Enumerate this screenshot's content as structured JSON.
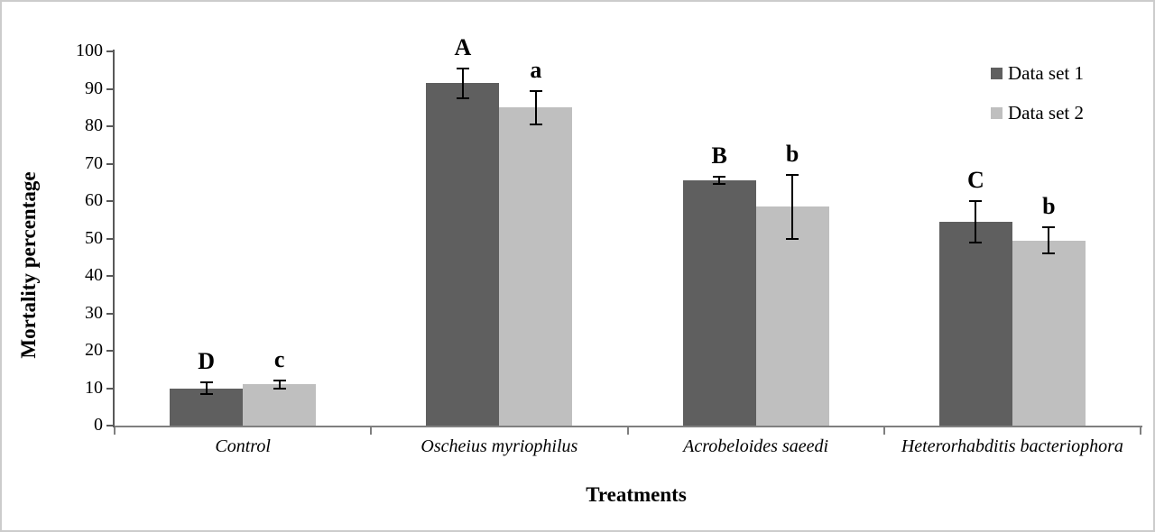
{
  "chart_data": {
    "type": "bar",
    "title": "",
    "xlabel": "Treatments",
    "ylabel": "Mortality percentage",
    "ylim": [
      0,
      100
    ],
    "ytick_step": 10,
    "grid": false,
    "legend_position": "top-right",
    "categories": [
      "Control",
      "Oscheius myriophilus",
      "Acrobeloides saeedi",
      "Heterorhabditis bacteriophora"
    ],
    "series": [
      {
        "name": "Data set 1",
        "color": "#5f5f5f",
        "values": [
          10,
          91.5,
          65.5,
          54.5
        ],
        "errors": [
          1.5,
          4,
          1,
          5.5
        ],
        "letters": [
          "D",
          "A",
          "B",
          "C"
        ]
      },
      {
        "name": "Data set 2",
        "color": "#bfbfbf",
        "values": [
          11,
          85,
          58.5,
          49.5
        ],
        "errors": [
          1,
          4.5,
          8.5,
          3.5
        ],
        "letters": [
          "c",
          "a",
          "b",
          "b"
        ]
      }
    ],
    "colors": {
      "y_axis_line": "#595959",
      "x_axis_line": "#7f7f7f",
      "error_bar": "#000000",
      "figure_border": "#cccccc"
    }
  }
}
